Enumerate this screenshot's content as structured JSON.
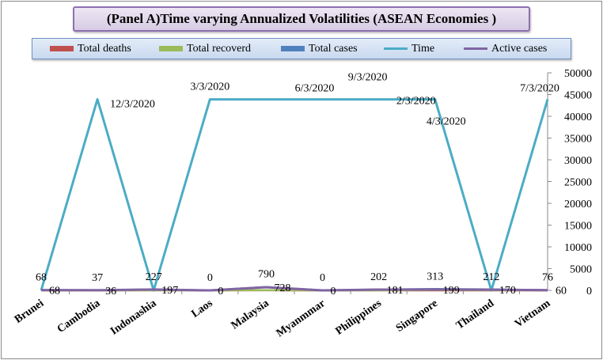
{
  "title": "(Panel A)Time varying Annualized Volatilities (ASEAN Economies )",
  "legend": [
    {
      "name": "Total deaths",
      "color": "#c0504d",
      "kind": "rect"
    },
    {
      "name": "Total recoverd",
      "color": "#9bbb59",
      "kind": "rect"
    },
    {
      "name": "Total cases",
      "color": "#4f81bd",
      "kind": "rect"
    },
    {
      "name": "Time",
      "color": "#4bacc6",
      "kind": "line"
    },
    {
      "name": "Active cases",
      "color": "#8064a2",
      "kind": "line"
    }
  ],
  "chart_data": {
    "type": "line",
    "categories": [
      "Brunei",
      "Cambodia",
      "Indonashia",
      "Laos",
      "Malaysia",
      "Myanmmar",
      "Philippines",
      "Singapore",
      "Thailand",
      "Vietnam"
    ],
    "ylim": [
      0,
      50000
    ],
    "yticks": [
      0,
      5000,
      10000,
      15000,
      20000,
      25000,
      30000,
      35000,
      40000,
      45000,
      50000
    ],
    "grid": false,
    "legend_position": "top",
    "series": [
      {
        "name": "Total deaths",
        "color": "#c0504d",
        "values": [
          0,
          0,
          19,
          0,
          10,
          0,
          12,
          0,
          1,
          0
        ]
      },
      {
        "name": "Total recoverd",
        "color": "#9bbb59",
        "values": [
          0,
          1,
          11,
          0,
          52,
          0,
          9,
          114,
          41,
          16
        ]
      },
      {
        "name": "Total cases",
        "color": "#4f81bd",
        "values": [
          68,
          37,
          227,
          0,
          790,
          0,
          202,
          313,
          212,
          76
        ]
      },
      {
        "name": "Time",
        "color": "#4bacc6",
        "values": [
          0,
          43902,
          0,
          43893,
          43896,
          43899,
          43892,
          43894,
          0,
          43897
        ]
      },
      {
        "name": "Active cases",
        "color": "#8064a2",
        "values": [
          68,
          36,
          197,
          0,
          728,
          0,
          181,
          199,
          170,
          60
        ]
      }
    ],
    "labels": [
      {
        "category": "Brunei",
        "text": "68",
        "anchor": "above",
        "value": 68
      },
      {
        "category": "Brunei",
        "text": "68",
        "anchor": "right",
        "value": 68
      },
      {
        "category": "Cambodia",
        "text": "37",
        "anchor": "above",
        "value": 37
      },
      {
        "category": "Cambodia",
        "text": "36",
        "anchor": "right",
        "value": 36
      },
      {
        "category": "Cambodia",
        "text": "12/3/2020",
        "anchor": "right",
        "value": 43902
      },
      {
        "category": "Indonashia",
        "text": "227",
        "anchor": "above",
        "value": 227
      },
      {
        "category": "Indonashia",
        "text": "197",
        "anchor": "right",
        "value": 197
      },
      {
        "category": "Laos",
        "text": "0",
        "anchor": "above",
        "value": 0
      },
      {
        "category": "Laos",
        "text": "0",
        "anchor": "right",
        "value": 0
      },
      {
        "category": "Laos",
        "text": "3/3/2020",
        "anchor": "above",
        "value": 43893
      },
      {
        "category": "Malaysia",
        "text": "790",
        "anchor": "above",
        "value": 790
      },
      {
        "category": "Malaysia",
        "text": "728",
        "anchor": "right",
        "value": 728
      },
      {
        "category": "Myanmmar",
        "text": "0",
        "anchor": "above",
        "value": 0
      },
      {
        "category": "Myanmmar",
        "text": "0",
        "anchor": "right",
        "value": 0
      },
      {
        "category": "Myanmmar",
        "text": "6/3/2020",
        "anchor": "above-left",
        "value": 43896
      },
      {
        "category": "Philippines",
        "text": "202",
        "anchor": "above",
        "value": 202
      },
      {
        "category": "Philippines",
        "text": "181",
        "anchor": "right",
        "value": 181
      },
      {
        "category": "Philippines",
        "text": "9/3/2020",
        "anchor": "above-high",
        "value": 43899
      },
      {
        "category": "Singapore",
        "text": "313",
        "anchor": "above",
        "value": 313
      },
      {
        "category": "Singapore",
        "text": "199",
        "anchor": "right",
        "value": 199
      },
      {
        "category": "Singapore",
        "text": "2/3/2020",
        "anchor": "left",
        "value": 43892
      },
      {
        "category": "Singapore",
        "text": "4/3/2020",
        "anchor": "below-right",
        "value": 43894
      },
      {
        "category": "Thailand",
        "text": "212",
        "anchor": "above",
        "value": 212
      },
      {
        "category": "Thailand",
        "text": "170",
        "anchor": "right",
        "value": 170
      },
      {
        "category": "Vietnam",
        "text": "76",
        "anchor": "above",
        "value": 76
      },
      {
        "category": "Vietnam",
        "text": "60",
        "anchor": "right",
        "value": 60
      },
      {
        "category": "Vietnam",
        "text": "7/3/2020",
        "anchor": "above-left",
        "value": 43897
      }
    ]
  }
}
